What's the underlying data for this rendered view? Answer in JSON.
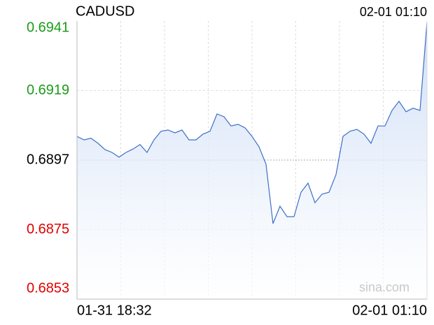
{
  "chart_data": {
    "type": "line",
    "title": "CADUSD",
    "timestamp": "02-01 01:10",
    "x_start_label": "01-31 18:32",
    "x_end_label": "02-01 01:10",
    "values": [
      0.69045,
      0.69034,
      0.69039,
      0.69023,
      0.69003,
      0.68994,
      0.68979,
      0.68994,
      0.69005,
      0.69019,
      0.68994,
      0.69034,
      0.69061,
      0.69065,
      0.69056,
      0.69065,
      0.69034,
      0.69034,
      0.69052,
      0.69061,
      0.69116,
      0.69107,
      0.69078,
      0.69083,
      0.69072,
      0.69045,
      0.69012,
      0.68957,
      0.68769,
      0.68824,
      0.68791,
      0.68791,
      0.68868,
      0.68897,
      0.68835,
      0.68862,
      0.68868,
      0.68924,
      0.69045,
      0.69061,
      0.69067,
      0.69052,
      0.69023,
      0.69078,
      0.69078,
      0.69127,
      0.69156,
      0.69123,
      0.69134,
      0.69127,
      0.69406
    ],
    "color": "#3d6fc8",
    "ylim": [
      0.6853,
      0.6941
    ],
    "yticks": [
      0.6853,
      0.6875,
      0.6897,
      0.6919,
      0.6941
    ],
    "baseline": 0.6897,
    "tick_colors": {
      "up": "#1a9c1a",
      "down": "#e00000",
      "flat": "#000000"
    },
    "grid": true,
    "watermark": "sina.com"
  }
}
